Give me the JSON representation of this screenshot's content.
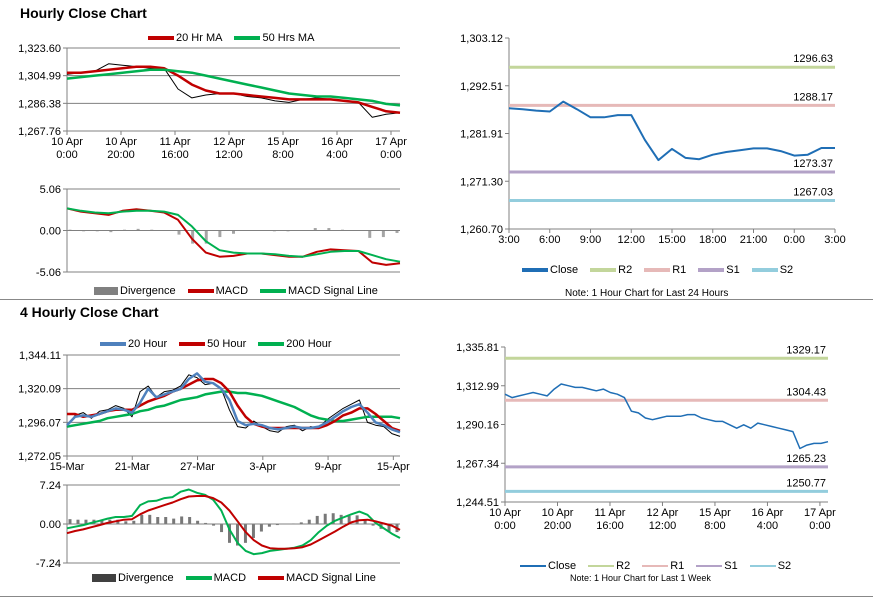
{
  "sections": {
    "hourly_title": "Hourly Close Chart",
    "four_hourly_title": "4 Hourly Close Chart"
  },
  "chart_data": [
    {
      "id": "c1",
      "type": "line",
      "ylim": [
        1267.76,
        1323.6
      ],
      "yticks": [
        "1,323.60",
        "1,304.99",
        "1,286.38",
        "1,267.76"
      ],
      "grid": true,
      "xticks": [
        [
          "10 Apr",
          "0:00"
        ],
        [
          "10 Apr",
          "20:00"
        ],
        [
          "11 Apr",
          "16:00"
        ],
        [
          "12 Apr",
          "12:00"
        ],
        [
          "15 Apr",
          "8:00"
        ],
        [
          "16 Apr",
          "4:00"
        ],
        [
          "17 Apr",
          "0:00"
        ]
      ],
      "series": [
        {
          "name": "Close",
          "legend": false,
          "color": "#000000",
          "width": 1,
          "values": [
            1306,
            1307,
            1308,
            1313,
            1312,
            1311,
            1310,
            1310,
            1296,
            1290,
            1292,
            1293,
            1293,
            1291,
            1290,
            1288,
            1287,
            1289,
            1290,
            1289,
            1288,
            1287,
            1277,
            1279,
            1280
          ]
        },
        {
          "name": "20 Hr MA",
          "color": "#c00000",
          "width": 2.5,
          "values": [
            1307,
            1307,
            1308,
            1309,
            1310,
            1311,
            1311,
            1310,
            1305,
            1299,
            1295,
            1293,
            1293,
            1292,
            1291,
            1290,
            1289,
            1289,
            1289,
            1289,
            1288,
            1287,
            1284,
            1281,
            1280
          ]
        },
        {
          "name": "50 Hrs MA",
          "color": "#00b050",
          "width": 2.5,
          "values": [
            1303,
            1304,
            1305,
            1306,
            1307,
            1308,
            1309,
            1309,
            1308,
            1307,
            1305,
            1303,
            1301,
            1299,
            1297,
            1295,
            1293,
            1292,
            1291,
            1291,
            1290,
            1289,
            1288,
            1286,
            1285
          ]
        }
      ]
    },
    {
      "id": "c2",
      "type": "line",
      "ylim": [
        -5.06,
        5.06
      ],
      "yticks": [
        "5.06",
        "0.00",
        "-5.06"
      ],
      "grid": true,
      "xticks": [],
      "bars": {
        "name": "Divergence",
        "color": "#808080",
        "values": [
          0.1,
          -0.1,
          -0.1,
          -0.2,
          0.1,
          0.2,
          0.1,
          0,
          -0.5,
          -1.6,
          -1.6,
          -0.8,
          -0.4,
          0,
          0,
          -0.1,
          -0.1,
          0,
          0.3,
          0.3,
          0.1,
          0,
          -0.9,
          -0.8,
          -0.3
        ]
      },
      "series": [
        {
          "name": "MACD",
          "color": "#c00000",
          "width": 2,
          "values": [
            2.7,
            2.3,
            2.1,
            1.9,
            2.4,
            2.6,
            2.4,
            2.2,
            1.3,
            -1.0,
            -2.7,
            -3.2,
            -3.1,
            -2.8,
            -2.8,
            -3.0,
            -3.2,
            -3.2,
            -2.6,
            -2.3,
            -2.4,
            -2.5,
            -3.9,
            -4.2,
            -4.0
          ]
        },
        {
          "name": "MACD Signal Line",
          "color": "#00b050",
          "width": 2,
          "values": [
            2.7,
            2.4,
            2.2,
            2.1,
            2.3,
            2.4,
            2.4,
            2.3,
            1.9,
            0.5,
            -1.3,
            -2.4,
            -2.7,
            -2.8,
            -2.8,
            -2.9,
            -3.1,
            -3.2,
            -2.9,
            -2.6,
            -2.5,
            -2.5,
            -3.0,
            -3.5,
            -3.8
          ]
        }
      ]
    },
    {
      "id": "r1",
      "type": "line",
      "ylim": [
        1260.7,
        1303.12
      ],
      "yticks": [
        "1,303.12",
        "1,292.51",
        "1,281.91",
        "1,271.30",
        "1,260.70"
      ],
      "grid": false,
      "xticks": [
        [
          "3:00"
        ],
        [
          "6:00"
        ],
        [
          "9:00"
        ],
        [
          "12:00"
        ],
        [
          "15:00"
        ],
        [
          "18:00"
        ],
        [
          "21:00"
        ],
        [
          "0:00"
        ],
        [
          "3:00"
        ]
      ],
      "levels": [
        {
          "name": "R2",
          "value": 1296.63,
          "label": "1296.63",
          "color": "#c3d69b"
        },
        {
          "name": "R1",
          "value": 1288.17,
          "label": "1288.17",
          "color": "#e6b9b8"
        },
        {
          "name": "S1",
          "value": 1273.37,
          "label": "1273.37",
          "color": "#b3a2c7"
        },
        {
          "name": "S2",
          "value": 1267.03,
          "label": "1267.03",
          "color": "#93cddd"
        }
      ],
      "series": [
        {
          "name": "Close",
          "color": "#1f6eb5",
          "width": 2,
          "values": [
            1287.5,
            1287.3,
            1287,
            1286.8,
            1289,
            1287.3,
            1285.5,
            1285.5,
            1286,
            1286,
            1280.5,
            1276,
            1278.5,
            1276.5,
            1276.2,
            1277.2,
            1277.8,
            1278.2,
            1278.6,
            1278.6,
            1278,
            1277,
            1277.2,
            1278.7,
            1278.7
          ]
        }
      ],
      "note": "Note: 1 Hour Chart for Last 24 Hours"
    },
    {
      "id": "c3",
      "type": "line",
      "ylim": [
        1272.05,
        1344.11
      ],
      "yticks": [
        "1,344.11",
        "1,320.09",
        "1,296.07",
        "1,272.05"
      ],
      "grid": true,
      "xticks": [
        [
          "15-Mar"
        ],
        [
          "21-Mar"
        ],
        [
          "27-Mar"
        ],
        [
          "3-Apr"
        ],
        [
          "9-Apr"
        ],
        [
          "15-Apr"
        ]
      ],
      "series": [
        {
          "name": "Close",
          "legend": false,
          "color": "#000000",
          "width": 1,
          "values": [
            1293,
            1301,
            1303,
            1299,
            1304,
            1305,
            1308,
            1306,
            1300,
            1318,
            1322,
            1314,
            1318,
            1319,
            1322,
            1330,
            1328,
            1323,
            1324,
            1320,
            1305,
            1293,
            1292,
            1297,
            1293,
            1290,
            1289,
            1293,
            1294,
            1290,
            1293,
            1292,
            1298,
            1302,
            1306,
            1309,
            1312,
            1296,
            1294,
            1293,
            1288,
            1286
          ]
        },
        {
          "name": "200 Hour",
          "color": "#00b050",
          "width": 2.5,
          "values": [
            1293,
            1294,
            1295,
            1296,
            1297,
            1299,
            1300,
            1301,
            1302,
            1304,
            1305,
            1307,
            1308,
            1310,
            1312,
            1313,
            1314,
            1316,
            1317,
            1318,
            1318,
            1317,
            1317,
            1316,
            1315,
            1313,
            1311,
            1309,
            1307,
            1304,
            1301,
            1299,
            1298,
            1297,
            1297,
            1298,
            1299,
            1300,
            1300,
            1300,
            1300,
            1299
          ]
        },
        {
          "name": "50 Hour",
          "color": "#c00000",
          "width": 2.5,
          "values": [
            1302,
            1302,
            1300,
            1301,
            1302,
            1304,
            1305,
            1305,
            1305,
            1308,
            1311,
            1313,
            1315,
            1318,
            1320,
            1323,
            1326,
            1327,
            1327,
            1324,
            1318,
            1308,
            1300,
            1295,
            1293,
            1292,
            1292,
            1292,
            1292,
            1292,
            1292,
            1292,
            1294,
            1297,
            1301,
            1303,
            1306,
            1306,
            1302,
            1297,
            1292,
            1290
          ]
        },
        {
          "name": "20 Hour",
          "color": "#4f81bd",
          "width": 2.5,
          "values": [
            1294,
            1300,
            1301,
            1300,
            1302,
            1304,
            1306,
            1305,
            1303,
            1310,
            1320,
            1314,
            1316,
            1318,
            1320,
            1327,
            1331,
            1325,
            1324,
            1320,
            1312,
            1297,
            1294,
            1295,
            1294,
            1292,
            1291,
            1292,
            1293,
            1292,
            1292,
            1293,
            1296,
            1300,
            1304,
            1307,
            1309,
            1303,
            1296,
            1294,
            1291,
            1289
          ]
        }
      ]
    },
    {
      "id": "c4",
      "type": "line",
      "ylim": [
        -7.24,
        7.24
      ],
      "yticks": [
        "7.24",
        "0.00",
        "-7.24"
      ],
      "grid": true,
      "xticks": [],
      "bars": {
        "name": "Divergence",
        "color": "#404040",
        "values": [
          0.9,
          0.8,
          0.8,
          0.8,
          0.8,
          0.8,
          0.8,
          0.5,
          0.6,
          1.7,
          1.7,
          1.3,
          1.3,
          1.0,
          1.4,
          1.3,
          0.6,
          0.2,
          -0.3,
          -1.5,
          -3.5,
          -4.0,
          -3.5,
          -2.6,
          -1.4,
          -0.5,
          -0.2,
          0,
          0.1,
          0.3,
          0.8,
          1.5,
          1.9,
          2.0,
          1.7,
          1.5,
          1.6,
          0.9,
          -0.3,
          -0.9,
          -1.5,
          -1.5
        ]
      },
      "series": [
        {
          "name": "MACD",
          "color": "#00b050",
          "width": 2,
          "values": [
            -0.8,
            -0.5,
            -0.2,
            0.2,
            0.6,
            1.0,
            1.3,
            1.3,
            1.5,
            3.5,
            4.2,
            4.3,
            4.8,
            5.0,
            6.0,
            6.4,
            5.8,
            5.4,
            4.5,
            2.5,
            -1.0,
            -3.5,
            -5.0,
            -5.6,
            -5.4,
            -5.0,
            -4.8,
            -4.6,
            -4.4,
            -4.0,
            -3.0,
            -1.5,
            -0.3,
            0.6,
            1.2,
            1.8,
            2.3,
            1.7,
            0.2,
            -0.8,
            -1.8,
            -2.6
          ]
        },
        {
          "name": "MACD Signal Line",
          "color": "#c00000",
          "width": 2,
          "values": [
            -1.7,
            -1.3,
            -1.0,
            -0.6,
            -0.2,
            0.2,
            0.5,
            0.8,
            0.9,
            1.8,
            2.5,
            3.0,
            3.5,
            4.0,
            4.6,
            5.1,
            5.2,
            5.2,
            4.8,
            4.0,
            2.5,
            0.5,
            -1.5,
            -3.0,
            -4.0,
            -4.5,
            -4.6,
            -4.6,
            -4.5,
            -4.3,
            -3.8,
            -3.0,
            -2.2,
            -1.4,
            -0.5,
            0.3,
            0.7,
            0.8,
            0.5,
            0.1,
            -0.3,
            -1.1
          ]
        }
      ]
    },
    {
      "id": "r2",
      "type": "line",
      "ylim": [
        1244.51,
        1335.81
      ],
      "yticks": [
        "1,335.81",
        "1,312.99",
        "1,290.16",
        "1,267.34",
        "1,244.51"
      ],
      "grid": false,
      "xticks": [
        [
          "10 Apr",
          "0:00"
        ],
        [
          "10 Apr",
          "20:00"
        ],
        [
          "11 Apr",
          "16:00"
        ],
        [
          "12 Apr",
          "12:00"
        ],
        [
          "15 Apr",
          "8:00"
        ],
        [
          "16 Apr",
          "4:00"
        ],
        [
          "17 Apr",
          "0:00"
        ]
      ],
      "levels": [
        {
          "name": "R2",
          "value": 1329.17,
          "label": "1329.17",
          "color": "#c3d69b"
        },
        {
          "name": "R1",
          "value": 1304.43,
          "label": "1304.43",
          "color": "#e6b9b8"
        },
        {
          "name": "S1",
          "value": 1265.23,
          "label": "1265.23",
          "color": "#b3a2c7"
        },
        {
          "name": "S2",
          "value": 1250.77,
          "label": "1250.77",
          "color": "#93cddd"
        }
      ],
      "series": [
        {
          "name": "Close",
          "color": "#1f6eb5",
          "width": 1.5,
          "values": [
            1308,
            1306,
            1307,
            1308,
            1309,
            1308,
            1307,
            1311,
            1314,
            1313,
            1312,
            1312,
            1311,
            1310,
            1311,
            1309,
            1308,
            1306,
            1298,
            1297,
            1294,
            1293,
            1294,
            1295,
            1295,
            1295,
            1296,
            1296,
            1294,
            1293,
            1292,
            1292,
            1290,
            1288,
            1290,
            1288,
            1291,
            1290,
            1289,
            1288,
            1287,
            1286,
            1276,
            1278,
            1279,
            1279,
            1280
          ]
        }
      ],
      "note": "Note: 1 Hour Chart for Last 1 Week"
    }
  ]
}
